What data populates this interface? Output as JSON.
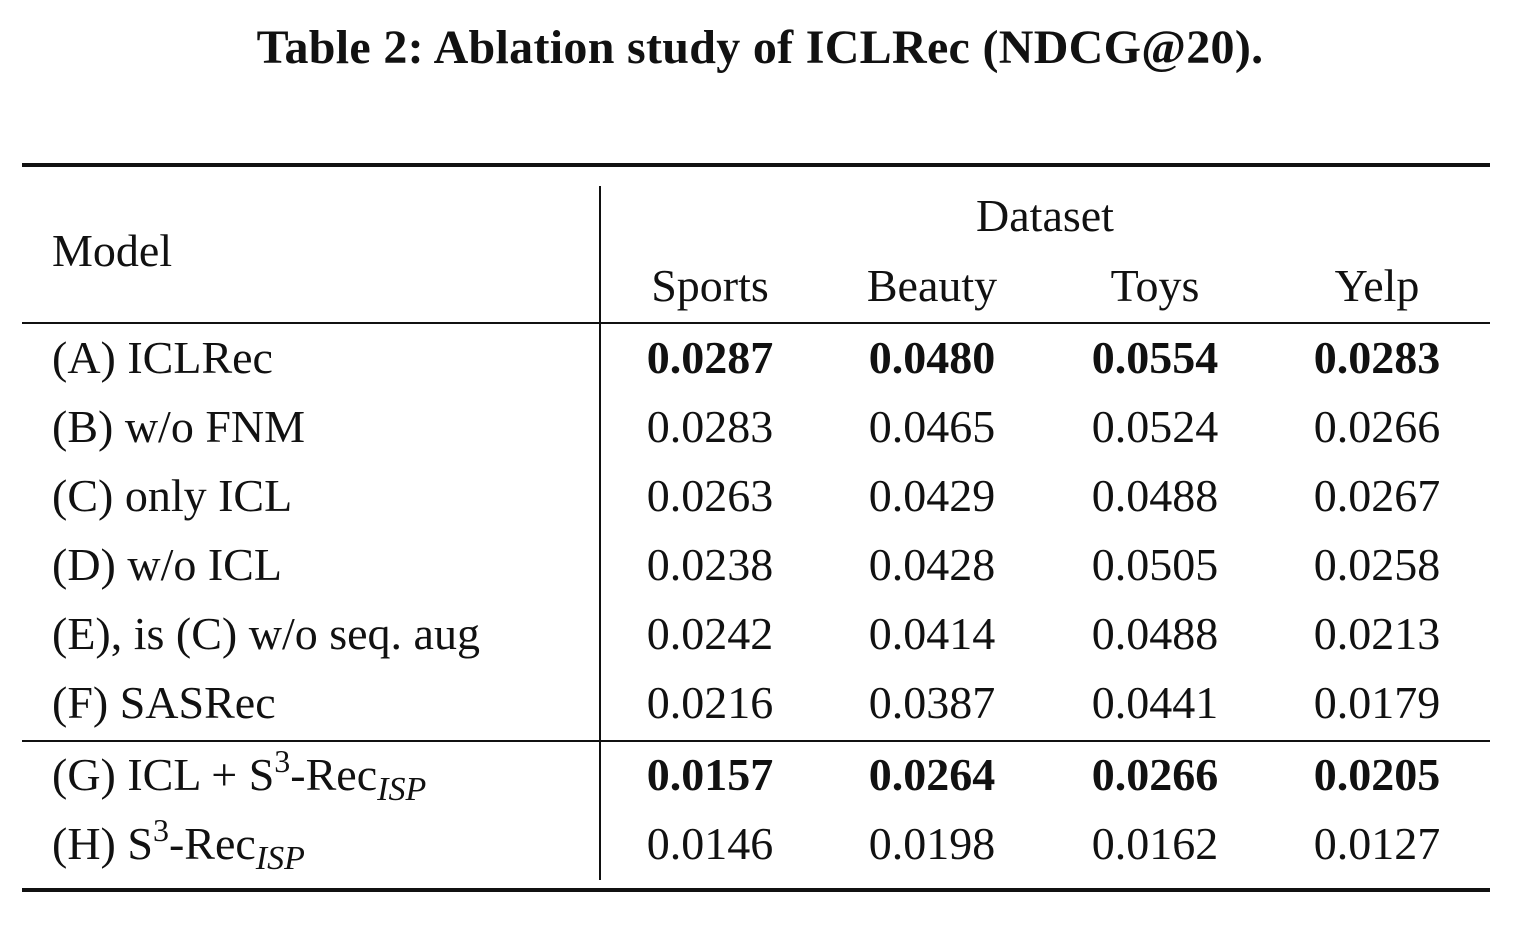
{
  "caption": "Table 2: Ablation study of ICLRec (NDCG@20).",
  "header": {
    "model_label": "Model",
    "group_label": "Dataset",
    "columns": [
      "Sports",
      "Beauty",
      "Toys",
      "Yelp"
    ]
  },
  "rows": [
    {
      "label": "(A) ICLRec",
      "values": [
        "0.0287",
        "0.0480",
        "0.0554",
        "0.0283"
      ],
      "bold": true
    },
    {
      "label": "(B) w/o FNM",
      "values": [
        "0.0283",
        "0.0465",
        "0.0524",
        "0.0266"
      ],
      "bold": false
    },
    {
      "label": "(C) only ICL",
      "values": [
        "0.0263",
        "0.0429",
        "0.0488",
        "0.0267"
      ],
      "bold": false
    },
    {
      "label": "(D) w/o ICL",
      "values": [
        "0.0238",
        "0.0428",
        "0.0505",
        "0.0258"
      ],
      "bold": false
    },
    {
      "label": "(E), is (C) w/o seq. aug",
      "values": [
        "0.0242",
        "0.0414",
        "0.0488",
        "0.0213"
      ],
      "bold": false
    },
    {
      "label": "(F) SASRec",
      "values": [
        "0.0216",
        "0.0387",
        "0.0441",
        "0.0179"
      ],
      "bold": false
    },
    {
      "label_parts": {
        "pre": "(G) ICL + S",
        "sup": "3",
        "mid": "-Rec",
        "sub": "ISP"
      },
      "values": [
        "0.0157",
        "0.0264",
        "0.0266",
        "0.0205"
      ],
      "bold": true
    },
    {
      "label_parts": {
        "pre": "(H) S",
        "sup": "3",
        "mid": "-Rec",
        "sub": "ISP"
      },
      "values": [
        "0.0146",
        "0.0198",
        "0.0162",
        "0.0127"
      ],
      "bold": false
    }
  ]
}
